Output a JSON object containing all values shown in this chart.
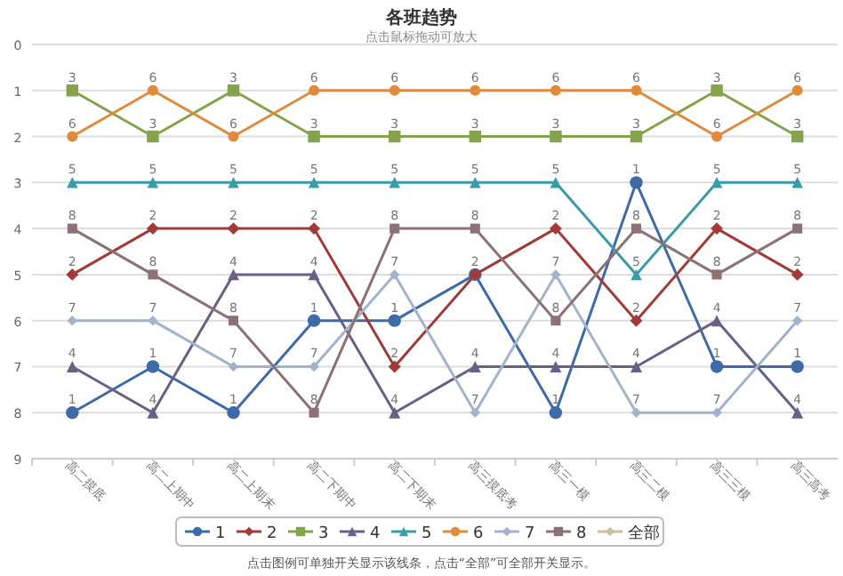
{
  "chart_data": {
    "type": "line",
    "title": "各班趋势",
    "subtitle": "点击鼠标拖动可放大",
    "categories": [
      "高二摸底",
      "高二上期中",
      "高二上期末",
      "高二下期中",
      "高二下期末",
      "高三摸底考",
      "高三一模",
      "高三二模",
      "高三三模",
      "高三高考"
    ],
    "ylim": [
      9,
      0
    ],
    "yticks": [
      0,
      1,
      2,
      3,
      4,
      5,
      6,
      7,
      8,
      9
    ],
    "grid": "y",
    "legend": "bottom",
    "series": [
      {
        "name": "1",
        "color": "#3e6aa8",
        "marker": "circle",
        "values": [
          8,
          7,
          8,
          6,
          6,
          5,
          8,
          3,
          7,
          7
        ]
      },
      {
        "name": "2",
        "color": "#a33a3a",
        "marker": "diamond",
        "values": [
          5,
          4,
          4,
          4,
          7,
          5,
          4,
          6,
          4,
          5
        ]
      },
      {
        "name": "3",
        "color": "#84a34a",
        "marker": "square",
        "values": [
          1,
          2,
          1,
          2,
          2,
          2,
          2,
          2,
          1,
          2
        ]
      },
      {
        "name": "4",
        "color": "#6b5f86",
        "marker": "triangle",
        "values": [
          7,
          8,
          5,
          5,
          8,
          7,
          7,
          7,
          6,
          8
        ]
      },
      {
        "name": "5",
        "color": "#3a9ca8",
        "marker": "triangle",
        "values": [
          3,
          3,
          3,
          3,
          3,
          3,
          3,
          5,
          3,
          3
        ]
      },
      {
        "name": "6",
        "color": "#e08a3c",
        "marker": "circle",
        "values": [
          2,
          1,
          2,
          1,
          1,
          1,
          1,
          1,
          2,
          1
        ]
      },
      {
        "name": "7",
        "color": "#a3b3cc",
        "marker": "diamond",
        "values": [
          6,
          6,
          7,
          7,
          5,
          8,
          5,
          8,
          8,
          6
        ]
      },
      {
        "name": "8",
        "color": "#8c7275",
        "marker": "square",
        "values": [
          4,
          5,
          6,
          8,
          4,
          4,
          6,
          4,
          5,
          4
        ]
      }
    ],
    "annotations": [
      "全部",
      "点击图例可单独开关显示该线条，点击“全部”可全部开关显示。",
      {
        "text": "3",
        "x": "高二摸底",
        "y": 1
      },
      {
        "text": "6",
        "x": "高二摸底",
        "y": 2
      },
      {
        "text": "5",
        "x": "高二摸底",
        "y": 3
      },
      {
        "text": "8",
        "x": "高二摸底",
        "y": 4
      },
      {
        "text": "2",
        "x": "高二摸底",
        "y": 5
      },
      {
        "text": "7",
        "x": "高二摸底",
        "y": 6
      },
      {
        "text": "4",
        "x": "高二摸底",
        "y": 7
      },
      {
        "text": "1",
        "x": "高二摸底",
        "y": 8
      },
      {
        "text": "6",
        "x": "高二上期中",
        "y": 1
      },
      {
        "text": "3",
        "x": "高二上期中",
        "y": 2
      },
      {
        "text": "5",
        "x": "高二上期中",
        "y": 3
      },
      {
        "text": "2",
        "x": "高二上期中",
        "y": 4
      },
      {
        "text": "8",
        "x": "高二上期中",
        "y": 5
      },
      {
        "text": "7",
        "x": "高二上期中",
        "y": 6
      },
      {
        "text": "1",
        "x": "高二上期中",
        "y": 7
      },
      {
        "text": "4",
        "x": "高二上期中",
        "y": 8
      },
      {
        "text": "3",
        "x": "高二上期末",
        "y": 1
      },
      {
        "text": "6",
        "x": "高二上期末",
        "y": 2
      },
      {
        "text": "5",
        "x": "高二上期末",
        "y": 3
      },
      {
        "text": "2",
        "x": "高二上期末",
        "y": 4
      },
      {
        "text": "4",
        "x": "高二上期末",
        "y": 5
      },
      {
        "text": "8",
        "x": "高二上期末",
        "y": 6
      },
      {
        "text": "7",
        "x": "高二上期末",
        "y": 7
      },
      {
        "text": "1",
        "x": "高二上期末",
        "y": 8
      },
      {
        "text": "6",
        "x": "高二下期中",
        "y": 1
      },
      {
        "text": "3",
        "x": "高二下期中",
        "y": 2
      },
      {
        "text": "5",
        "x": "高二下期中",
        "y": 3
      },
      {
        "text": "2",
        "x": "高二下期中",
        "y": 4
      },
      {
        "text": "4",
        "x": "高二下期中",
        "y": 5
      },
      {
        "text": "1",
        "x": "高二下期中",
        "y": 6
      },
      {
        "text": "7",
        "x": "高二下期中",
        "y": 7
      },
      {
        "text": "8",
        "x": "高二下期中",
        "y": 8
      },
      {
        "text": "6",
        "x": "高二下期末",
        "y": 1
      },
      {
        "text": "3",
        "x": "高二下期末",
        "y": 2
      },
      {
        "text": "5",
        "x": "高二下期末",
        "y": 3
      },
      {
        "text": "8",
        "x": "高二下期末",
        "y": 4
      },
      {
        "text": "7",
        "x": "高二下期末",
        "y": 5
      },
      {
        "text": "1",
        "x": "高二下期末",
        "y": 6
      },
      {
        "text": "2",
        "x": "高二下期末",
        "y": 7
      },
      {
        "text": "4",
        "x": "高二下期末",
        "y": 8
      },
      {
        "text": "6",
        "x": "高三摸底考",
        "y": 1
      },
      {
        "text": "3",
        "x": "高三摸底考",
        "y": 2
      },
      {
        "text": "5",
        "x": "高三摸底考",
        "y": 3
      },
      {
        "text": "8",
        "x": "高三摸底考",
        "y": 4
      },
      {
        "text": "2",
        "x": "高三摸底考",
        "y": 5
      },
      {
        "text": "4",
        "x": "高三摸底考",
        "y": 7
      },
      {
        "text": "7",
        "x": "高三摸底考",
        "y": 8
      },
      {
        "text": "6",
        "x": "高三一模",
        "y": 1
      },
      {
        "text": "3",
        "x": "高三一模",
        "y": 2
      },
      {
        "text": "5",
        "x": "高三一模",
        "y": 3
      },
      {
        "text": "2",
        "x": "高三一模",
        "y": 4
      },
      {
        "text": "7",
        "x": "高三一模",
        "y": 5
      },
      {
        "text": "8",
        "x": "高三一模",
        "y": 6
      },
      {
        "text": "4",
        "x": "高三一模",
        "y": 7
      },
      {
        "text": "1",
        "x": "高三一模",
        "y": 8
      },
      {
        "text": "6",
        "x": "高三二模",
        "y": 1
      },
      {
        "text": "3",
        "x": "高三二模",
        "y": 2
      },
      {
        "text": "1",
        "x": "高三二模",
        "y": 3
      },
      {
        "text": "8",
        "x": "高三二模",
        "y": 4
      },
      {
        "text": "5",
        "x": "高三二模",
        "y": 5
      },
      {
        "text": "2",
        "x": "高三二模",
        "y": 6
      },
      {
        "text": "4",
        "x": "高三二模",
        "y": 7
      },
      {
        "text": "7",
        "x": "高三二模",
        "y": 8
      },
      {
        "text": "3",
        "x": "高三三模",
        "y": 1
      },
      {
        "text": "6",
        "x": "高三三模",
        "y": 2
      },
      {
        "text": "5",
        "x": "高三三模",
        "y": 3
      },
      {
        "text": "2",
        "x": "高三三模",
        "y": 4
      },
      {
        "text": "8",
        "x": "高三三模",
        "y": 5
      },
      {
        "text": "4",
        "x": "高三三模",
        "y": 6
      },
      {
        "text": "1",
        "x": "高三三模",
        "y": 7
      },
      {
        "text": "7",
        "x": "高三三模",
        "y": 8
      },
      {
        "text": "6",
        "x": "高三高考",
        "y": 1
      },
      {
        "text": "3",
        "x": "高三高考",
        "y": 2
      },
      {
        "text": "5",
        "x": "高三高考",
        "y": 3
      },
      {
        "text": "8",
        "x": "高三高考",
        "y": 4
      },
      {
        "text": "2",
        "x": "高三高考",
        "y": 5
      },
      {
        "text": "7",
        "x": "高三高考",
        "y": 6
      },
      {
        "text": "1",
        "x": "高三高考",
        "y": 7
      },
      {
        "text": "4",
        "x": "高三高考",
        "y": 8
      }
    ]
  }
}
